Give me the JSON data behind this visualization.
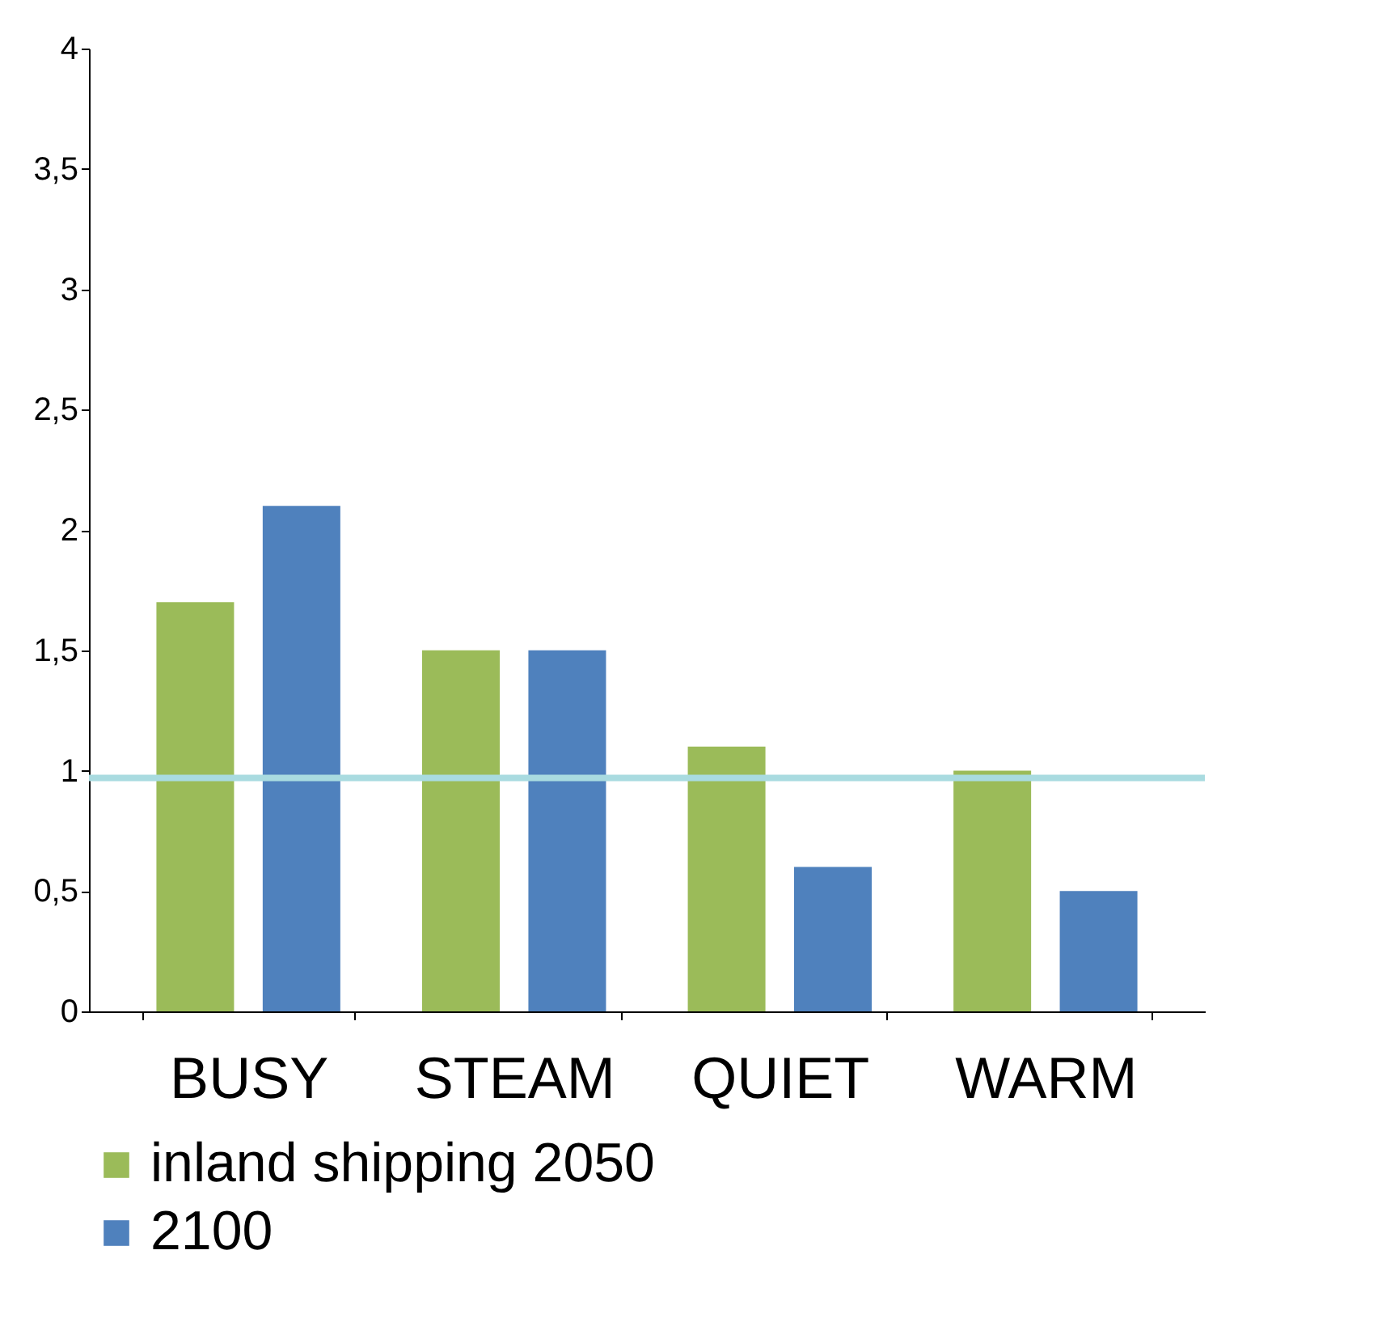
{
  "chart_data": {
    "type": "bar",
    "categories": [
      "BUSY",
      "STEAM",
      "QUIET",
      "WARM"
    ],
    "series": [
      {
        "name": "inland shipping 2050",
        "color": "#9bbb59",
        "values": [
          1.7,
          1.5,
          1.1,
          1.0
        ]
      },
      {
        "name": "2100",
        "color": "#4f81bd",
        "values": [
          2.1,
          1.5,
          0.6,
          0.5
        ]
      }
    ],
    "ylim": [
      0,
      4
    ],
    "yticks": [
      0,
      {
        "value": 0.5,
        "label": "0,5"
      },
      1,
      {
        "value": 1.5,
        "label": "1,5"
      },
      2,
      {
        "value": 2.5,
        "label": "2,5"
      },
      3,
      {
        "value": 3.5,
        "label": "3,5"
      },
      4
    ],
    "ref_lines": [
      {
        "axis": "y",
        "value": 0.97,
        "color": "#a9dbe0"
      }
    ],
    "grid": false,
    "legend": "bottom"
  }
}
